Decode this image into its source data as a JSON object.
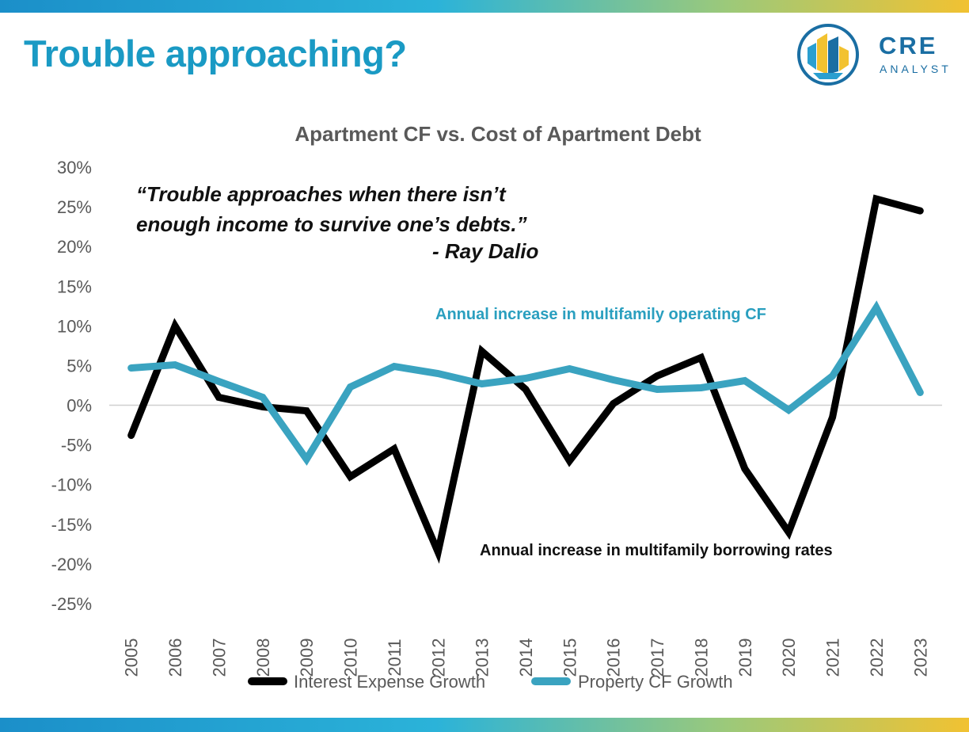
{
  "slide_title": "Trouble approaching?",
  "logo": {
    "line1": "CRE",
    "line2": "ANALYST"
  },
  "colors": {
    "title": "#1a9ac4",
    "interest_series": "#000000",
    "cf_series": "#3aa3c0",
    "band_start": "#1b8fc9",
    "band_end": "#f1c232",
    "logo_blue": "#1a6ea3",
    "logo_yellow": "#f2c230"
  },
  "quote": {
    "line1": "“Trouble approaches when there isn’t",
    "line2": "enough income to survive one’s debts.”",
    "author": "- Ray Dalio"
  },
  "annotations": {
    "cf": "Annual increase in multifamily operating CF",
    "rates": "Annual increase in multifamily borrowing rates"
  },
  "chart_data": {
    "type": "line",
    "title": "Apartment CF vs. Cost of Apartment Debt",
    "xlabel": "",
    "ylabel": "",
    "categories": [
      "2005",
      "2006",
      "2007",
      "2008",
      "2009",
      "2010",
      "2011",
      "2012",
      "2013",
      "2014",
      "2015",
      "2016",
      "2017",
      "2018",
      "2019",
      "2020",
      "2021",
      "2022",
      "2023"
    ],
    "y_tick_labels": [
      "30%",
      "25%",
      "20%",
      "15%",
      "10%",
      "5%",
      "0%",
      "-5%",
      "-10%",
      "-15%",
      "-20%",
      "-25%"
    ],
    "ylim": [
      -25,
      30
    ],
    "y_unit": "%",
    "grid": false,
    "legend_position": "bottom",
    "series": [
      {
        "name": "Interest Expense Growth",
        "color": "#000000",
        "values": [
          -3.8,
          10.0,
          1.0,
          -0.2,
          -0.7,
          -9.0,
          -5.5,
          -18.5,
          6.8,
          2.0,
          -7.0,
          0.2,
          3.7,
          6.0,
          -8.0,
          -16.0,
          -1.5,
          26.0,
          24.5
        ]
      },
      {
        "name": "Property CF Growth",
        "color": "#3aa3c0",
        "values": [
          4.7,
          5.1,
          3.0,
          1.0,
          -6.8,
          2.3,
          4.9,
          4.0,
          2.7,
          3.4,
          4.6,
          3.2,
          2.0,
          2.2,
          3.1,
          -0.6,
          3.7,
          12.3,
          1.6
        ]
      }
    ]
  }
}
